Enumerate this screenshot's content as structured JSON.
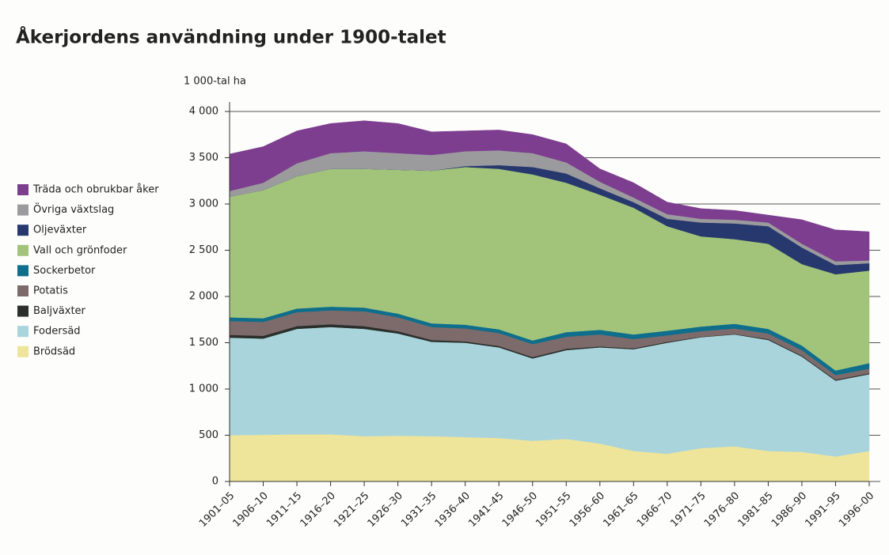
{
  "chart_data": {
    "type": "stacked_area",
    "title": "Åkerjordens användning under 1900-talet",
    "y_label": "1 000-tal ha",
    "categories": [
      "1901–05",
      "1906–10",
      "1911–15",
      "1916–20",
      "1921–25",
      "1926–30",
      "1931–35",
      "1936–40",
      "1941–45",
      "1946–50",
      "1951–55",
      "1956–60",
      "1961–65",
      "1966–70",
      "1971–75",
      "1976–80",
      "1981–85",
      "1986–90",
      "1991–95",
      "1996–00"
    ],
    "series": [
      {
        "name": "Brödsäd",
        "color": "#efe59a",
        "values": [
          500,
          505,
          510,
          510,
          490,
          495,
          490,
          480,
          470,
          440,
          460,
          410,
          330,
          300,
          360,
          380,
          330,
          320,
          270,
          330
        ]
      },
      {
        "name": "Fodersäd",
        "color": "#a9d4dc",
        "values": [
          1055,
          1040,
          1140,
          1160,
          1160,
          1105,
          1020,
          1020,
          980,
          890,
          960,
          1040,
          1100,
          1200,
          1200,
          1210,
          1200,
          1030,
          820,
          830
        ]
      },
      {
        "name": "Baljväxter",
        "color": "#2a2f2b",
        "values": [
          30,
          30,
          30,
          30,
          30,
          25,
          20,
          15,
          15,
          15,
          15,
          10,
          10,
          10,
          5,
          5,
          10,
          10,
          10,
          10
        ]
      },
      {
        "name": "Potatis",
        "color": "#7d6b6b",
        "values": [
          150,
          150,
          150,
          150,
          160,
          150,
          140,
          140,
          140,
          140,
          130,
          130,
          100,
          70,
          60,
          60,
          60,
          60,
          50,
          50
        ]
      },
      {
        "name": "Sockerbetor",
        "color": "#0e6e8c",
        "values": [
          40,
          40,
          40,
          40,
          40,
          40,
          40,
          40,
          40,
          40,
          50,
          50,
          50,
          50,
          50,
          50,
          50,
          50,
          50,
          60
        ]
      },
      {
        "name": "Vall och grönfoder",
        "color": "#a2c47a",
        "values": [
          1305,
          1385,
          1430,
          1490,
          1500,
          1555,
          1650,
          1705,
          1735,
          1795,
          1615,
          1460,
          1370,
          1130,
          975,
          915,
          920,
          880,
          1040,
          1000
        ]
      },
      {
        "name": "Oljeväxter",
        "color": "#27386e",
        "values": [
          0,
          0,
          0,
          0,
          0,
          0,
          0,
          10,
          40,
          80,
          100,
          70,
          60,
          80,
          150,
          170,
          190,
          180,
          100,
          80
        ]
      },
      {
        "name": "Övriga växtslag",
        "color": "#9b9b9e",
        "values": [
          60,
          80,
          140,
          170,
          190,
          180,
          170,
          160,
          160,
          150,
          120,
          70,
          50,
          50,
          40,
          40,
          40,
          40,
          40,
          30
        ]
      },
      {
        "name": "Träda och obrukbar åker",
        "color": "#7d3e8f",
        "values": [
          400,
          390,
          350,
          320,
          330,
          320,
          250,
          220,
          220,
          200,
          200,
          140,
          160,
          130,
          110,
          100,
          80,
          260,
          340,
          310
        ]
      }
    ],
    "ylim": [
      0,
      4000
    ],
    "yticks": [
      0,
      500,
      {
        "value": 1000,
        "label": "1 000"
      },
      {
        "value": 1500,
        "label": "1 500"
      },
      {
        "value": 2000,
        "label": "2 000"
      },
      {
        "value": 2500,
        "label": "2 500"
      },
      {
        "value": 3000,
        "label": "3 000"
      },
      {
        "value": 3500,
        "label": "3 500"
      },
      {
        "value": 4000,
        "label": "4 000"
      }
    ],
    "grid": true
  }
}
